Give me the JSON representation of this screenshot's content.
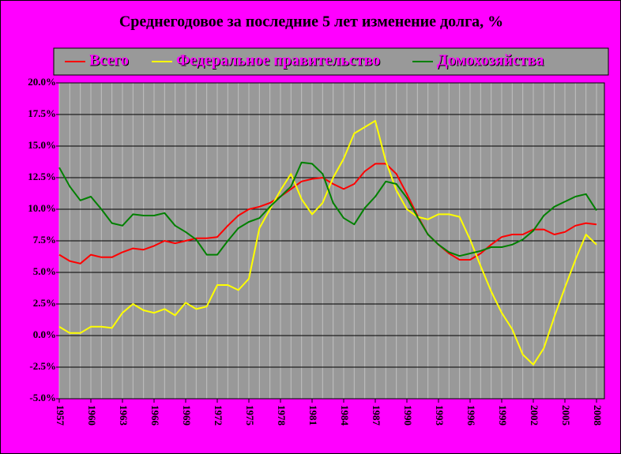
{
  "chart_data": {
    "type": "line",
    "title": "Среднегодовое за последние 5 лет изменение долга, %",
    "x": [
      1957,
      1958,
      1959,
      1960,
      1961,
      1962,
      1963,
      1964,
      1965,
      1966,
      1967,
      1968,
      1969,
      1970,
      1971,
      1972,
      1973,
      1974,
      1975,
      1976,
      1977,
      1978,
      1979,
      1980,
      1981,
      1982,
      1983,
      1984,
      1985,
      1986,
      1987,
      1988,
      1989,
      1990,
      1991,
      1992,
      1993,
      1994,
      1995,
      1996,
      1997,
      1998,
      1999,
      2000,
      2001,
      2002,
      2003,
      2004,
      2005,
      2006,
      2007,
      2008
    ],
    "xlim": [
      1957,
      2008
    ],
    "xticks": [
      1957,
      1960,
      1963,
      1966,
      1969,
      1972,
      1975,
      1978,
      1981,
      1984,
      1987,
      1990,
      1993,
      1996,
      1999,
      2002,
      2005,
      2008
    ],
    "ylim": [
      -5,
      20
    ],
    "yticks": [
      {
        "value": 20,
        "label": "20.0%"
      },
      {
        "value": 17.5,
        "label": "17.5%"
      },
      {
        "value": 15,
        "label": "15.0%"
      },
      {
        "value": 12.5,
        "label": "12.5%"
      },
      {
        "value": 10,
        "label": "10.0%"
      },
      {
        "value": 7.5,
        "label": "7.5%"
      },
      {
        "value": 5,
        "label": "5.0%"
      },
      {
        "value": 2.5,
        "label": "2.5%"
      },
      {
        "value": 0,
        "label": "0.0%"
      },
      {
        "value": -2.5,
        "label": "-2.5%"
      },
      {
        "value": -5,
        "label": "-5.0%"
      }
    ],
    "grid": true,
    "legend": "top",
    "series": [
      {
        "name": "Всего",
        "color": "#ff0000",
        "values": [
          6.4,
          5.9,
          5.7,
          6.4,
          6.2,
          6.2,
          6.6,
          6.9,
          6.8,
          7.1,
          7.5,
          7.3,
          7.5,
          7.7,
          7.7,
          7.8,
          8.7,
          9.5,
          10.0,
          10.2,
          10.5,
          11.0,
          11.6,
          12.2,
          12.4,
          12.5,
          12.0,
          11.6,
          12.0,
          13.0,
          13.6,
          13.6,
          12.8,
          11.2,
          9.5,
          8.0,
          7.2,
          6.5,
          6.0,
          6.0,
          6.5,
          7.2,
          7.8,
          8.0,
          8.0,
          8.4,
          8.4,
          8.0,
          8.2,
          8.7,
          8.9,
          8.8
        ]
      },
      {
        "name": "Федеральное правительство",
        "color": "#ffff00",
        "values": [
          0.7,
          0.2,
          0.2,
          0.7,
          0.7,
          0.6,
          1.8,
          2.5,
          2.0,
          1.8,
          2.1,
          1.6,
          2.6,
          2.1,
          2.3,
          4.0,
          4.0,
          3.6,
          4.5,
          8.5,
          10.0,
          11.5,
          12.8,
          10.8,
          9.6,
          10.5,
          12.5,
          14.0,
          16.0,
          16.5,
          17.0,
          13.8,
          11.5,
          10.0,
          9.4,
          9.2,
          9.6,
          9.6,
          9.4,
          7.6,
          5.5,
          3.5,
          1.8,
          0.5,
          -1.5,
          -2.3,
          -1.0,
          1.5,
          3.8,
          6.0,
          8.0,
          7.2
        ]
      },
      {
        "name": "Домохозяйства",
        "color": "#008000",
        "values": [
          13.3,
          11.8,
          10.7,
          11.0,
          10.0,
          8.9,
          8.7,
          9.6,
          9.5,
          9.5,
          9.7,
          8.7,
          8.2,
          7.6,
          6.4,
          6.4,
          7.5,
          8.5,
          9.0,
          9.3,
          10.2,
          11.0,
          11.8,
          13.7,
          13.6,
          12.8,
          10.5,
          9.3,
          8.8,
          10.1,
          11.0,
          12.2,
          12.0,
          10.9,
          9.4,
          8.0,
          7.2,
          6.6,
          6.3,
          6.5,
          6.7,
          7.0,
          7.0,
          7.2,
          7.6,
          8.3,
          9.5,
          10.2,
          10.6,
          11.0,
          11.2,
          9.9
        ]
      }
    ]
  }
}
